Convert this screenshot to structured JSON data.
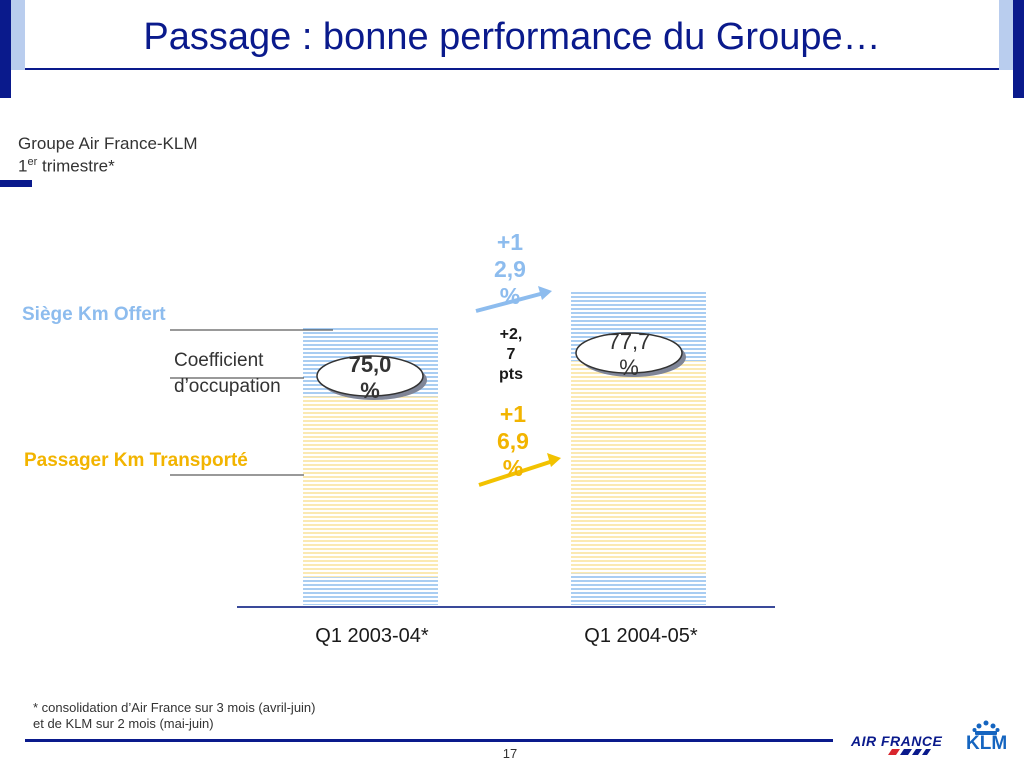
{
  "header": {
    "title": "Passage : bonne performance du Groupe…",
    "subtitle_line1": "Groupe Air France-KLM",
    "subtitle_line2_prefix": "1",
    "subtitle_line2_sup": "er",
    "subtitle_line2_suffix": " trimestre*"
  },
  "legend": {
    "sko": "Siège Km Offert",
    "load_factor_line1": "Coefficient",
    "load_factor_line2": "d’occupation",
    "pkt": "Passager Km Transporté"
  },
  "colors": {
    "brand_navy": "#0a1a8c",
    "sko_blue": "#8dbcee",
    "pkt_yellow": "#f2b400",
    "klm_blue": "#1565c0"
  },
  "chart_data": {
    "type": "bar",
    "categories": [
      "Q1 2003-04*",
      "Q1 2004-05*"
    ],
    "series": [
      {
        "name": "Siège Km Offert",
        "relative_values": [
          100.0,
          112.9
        ]
      },
      {
        "name": "Passager Km Transporté",
        "relative_values": [
          75.0,
          87.7
        ]
      }
    ],
    "load_factor_labels": [
      "75,0 %",
      "77,7 %"
    ],
    "load_factor_values": [
      75.0,
      77.7
    ],
    "annotations": {
      "sko_growth": [
        "+1",
        "2,9",
        "%"
      ],
      "pkt_growth": [
        "+1",
        "6,9",
        "%"
      ],
      "lf_change": [
        "+2,",
        "7",
        "pts"
      ]
    }
  },
  "footer": {
    "note_line1": "* consolidation d’Air France sur 3 mois (avril-juin)",
    "note_line2": "et de KLM sur 2 mois (mai-juin)",
    "page_number": "17",
    "logo_air_france": "AIR FRANCE",
    "logo_klm": "KLM"
  }
}
